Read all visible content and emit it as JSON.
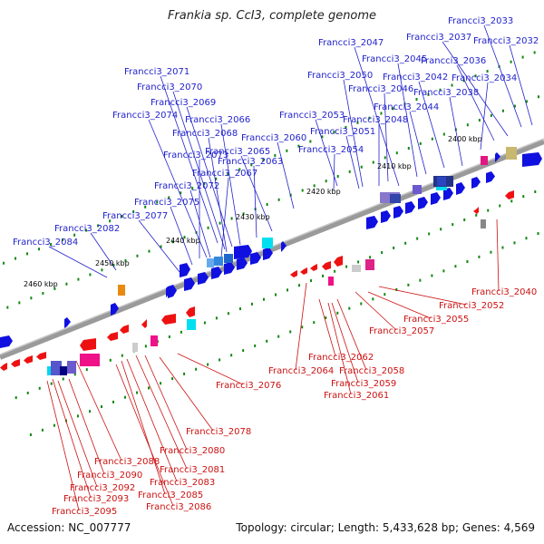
{
  "title": "Frankia sp. CcI3, complete genome",
  "footer": {
    "accession": "Accession: NC_007777",
    "topology": "Topology: circular; Length: 5,433,628 bp; Genes: 4,569"
  },
  "colors": {
    "forward": "#1010e0",
    "reverse": "#ee1111",
    "backbone": "#888888",
    "tick": "#118811",
    "label_forward": "#2222cc",
    "label_reverse": "#cc1111"
  },
  "scale_labels": [
    "2400 kbp",
    "2410 kbp",
    "2420 kbp",
    "2430 kbp",
    "2440 kbp",
    "2450 kbp",
    "2460 kbp"
  ],
  "forward_genes": [
    "Francci3_2033",
    "Francci3_2032",
    "Francci3_2037",
    "Francci3_2036",
    "Francci3_2034",
    "Francci3_2047",
    "Francci3_2045",
    "Francci3_2042",
    "Francci3_2038",
    "Francci3_2050",
    "Francci3_2046",
    "Francci3_2044",
    "Francci3_2053",
    "Francci3_2048",
    "Francci3_2051",
    "Francci3_2054",
    "Francci3_2060",
    "Francci3_2065",
    "Francci3_2063",
    "Francci3_2071",
    "Francci3_2070",
    "Francci3_2069",
    "Francci3_2074",
    "Francci3_2066",
    "Francci3_2068",
    "Francci3_2073",
    "Francci3_2067",
    "Francci3_2072",
    "Francci3_2075",
    "Francci3_2077",
    "Francci3_2082",
    "Francci3_2084"
  ],
  "reverse_genes": [
    "Francci3_2040",
    "Francci3_2052",
    "Francci3_2055",
    "Francci3_2057",
    "Francci3_2062",
    "Francci3_2064",
    "Francci3_2058",
    "Francci3_2059",
    "Francci3_2061",
    "Francci3_2076",
    "Francci3_2078",
    "Francci3_2080",
    "Francci3_2081",
    "Francci3_2088",
    "Francci3_2083",
    "Francci3_2090",
    "Francci3_2085",
    "Francci3_2092",
    "Francci3_2086",
    "Francci3_2093",
    "Francci3_2095"
  ]
}
